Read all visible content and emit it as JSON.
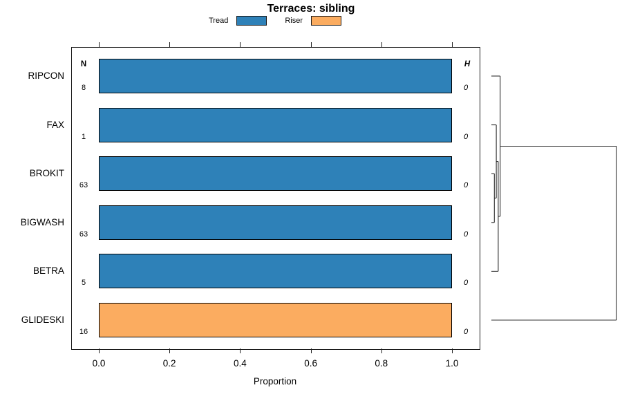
{
  "chart_data": {
    "type": "bar",
    "orientation": "horizontal",
    "title": "Terraces: sibling",
    "xlabel": "Proportion",
    "x_ticks": [
      "0.0",
      "0.2",
      "0.4",
      "0.6",
      "0.8",
      "1.0"
    ],
    "x_range": [
      0.0,
      1.0
    ],
    "grid": false,
    "legend_position": "top-center",
    "legend": [
      {
        "label": "Tread",
        "color": "#2E81B8"
      },
      {
        "label": "Riser",
        "color": "#FBAC60"
      }
    ],
    "columns": {
      "n_header": "N",
      "h_header": "H"
    },
    "categories": [
      "RIPCON",
      "FAX",
      "BROKIT",
      "BIGWASH",
      "BETRA",
      "GLIDESKI"
    ],
    "rows": [
      {
        "label": "RIPCON",
        "n": "8",
        "h": "0",
        "series": "Tread",
        "proportion": 1.0
      },
      {
        "label": "FAX",
        "n": "1",
        "h": "0",
        "series": "Tread",
        "proportion": 1.0
      },
      {
        "label": "BROKIT",
        "n": "63",
        "h": "0",
        "series": "Tread",
        "proportion": 1.0
      },
      {
        "label": "BIGWASH",
        "n": "63",
        "h": "0",
        "series": "Tread",
        "proportion": 1.0
      },
      {
        "label": "BETRA",
        "n": "5",
        "h": "0",
        "series": "Tread",
        "proportion": 1.0
      },
      {
        "label": "GLIDESKI",
        "n": "16",
        "h": "0",
        "series": "Riser",
        "proportion": 1.0
      }
    ],
    "dendrogram": {
      "side": "right",
      "tips": [
        "RIPCON",
        "FAX",
        "BROKIT",
        "BIGWASH",
        "BETRA",
        "GLIDESKI"
      ],
      "merges": [
        {
          "children": [
            "BROKIT",
            "BIGWASH"
          ],
          "height": 0
        },
        {
          "children": [
            "FAX",
            "m0"
          ],
          "height": 0
        },
        {
          "children": [
            "m1",
            "BETRA"
          ],
          "height": 0
        },
        {
          "children": [
            "RIPCON",
            "m2"
          ],
          "height": 0
        },
        {
          "children": [
            "m3",
            "GLIDESKI"
          ],
          "height": 1
        }
      ]
    }
  }
}
